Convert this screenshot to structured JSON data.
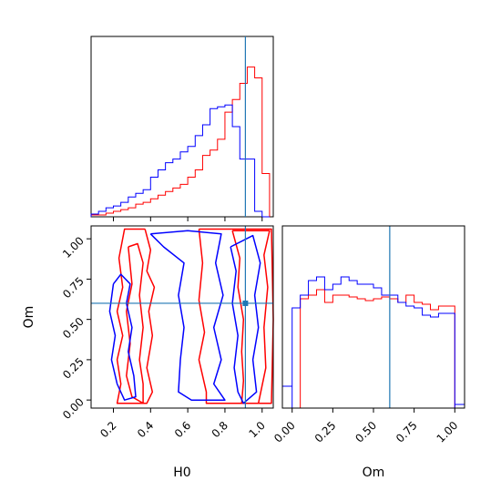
{
  "chart_data": {
    "type": "corner",
    "parameters": [
      "H0",
      "Om"
    ],
    "truth": {
      "H0": 0.91,
      "Om": 0.6
    },
    "truth_color": "#1f77b4",
    "series": [
      {
        "color": "#ff0000"
      },
      {
        "color": "#0000ff"
      }
    ],
    "panels": [
      {
        "id": "hist-H0",
        "type": "step-histogram",
        "xlim": [
          0.08,
          1.06
        ],
        "ylim": [
          0,
          1.0
        ],
        "xticks": [
          0.2,
          0.4,
          0.6,
          0.8,
          1.0
        ],
        "bins": [
          0.08,
          0.12,
          0.16,
          0.2,
          0.24,
          0.28,
          0.32,
          0.36,
          0.4,
          0.44,
          0.48,
          0.52,
          0.56,
          0.6,
          0.64,
          0.68,
          0.72,
          0.76,
          0.8,
          0.84,
          0.88,
          0.92,
          0.96,
          1.0,
          1.04
        ],
        "counts": [
          [
            0.01,
            0.01,
            0.02,
            0.03,
            0.04,
            0.05,
            0.07,
            0.08,
            0.1,
            0.12,
            0.14,
            0.16,
            0.18,
            0.22,
            0.26,
            0.34,
            0.37,
            0.43,
            0.58,
            0.65,
            0.74,
            0.83,
            0.77,
            0.24,
            0.0
          ],
          [
            0.015,
            0.03,
            0.05,
            0.06,
            0.08,
            0.11,
            0.13,
            0.15,
            0.22,
            0.26,
            0.3,
            0.32,
            0.36,
            0.39,
            0.45,
            0.51,
            0.6,
            0.61,
            0.62,
            0.5,
            0.32,
            0.32,
            0.03,
            0.0,
            0.0
          ]
        ]
      },
      {
        "id": "contour-H0-Om",
        "type": "contour",
        "xlabel": "H0",
        "ylabel": "Om",
        "xlim": [
          0.08,
          1.06
        ],
        "ylim": [
          -0.05,
          1.08
        ],
        "xticks": [
          0.2,
          0.4,
          0.6,
          0.8,
          1.0
        ],
        "yticks": [
          0.0,
          0.25,
          0.5,
          0.75,
          1.0
        ],
        "ytick_labels": [
          "0.00",
          "0.25",
          "0.50",
          "0.75",
          "1.00"
        ],
        "contours": [
          [
            [
              [
                0.28,
                0.95
              ],
              [
                0.3,
                0.72
              ],
              [
                0.27,
                0.55
              ],
              [
                0.29,
                0.35
              ],
              [
                0.27,
                0.15
              ],
              [
                0.3,
                0.02
              ],
              [
                0.36,
                -0.02
              ],
              [
                0.36,
                0.1
              ],
              [
                0.34,
                0.25
              ],
              [
                0.36,
                0.45
              ],
              [
                0.34,
                0.65
              ],
              [
                0.36,
                0.85
              ],
              [
                0.33,
                0.97
              ],
              [
                0.28,
                0.95
              ]
            ],
            [
              [
                0.84,
                1.05
              ],
              [
                0.88,
                0.88
              ],
              [
                0.87,
                0.7
              ],
              [
                0.9,
                0.5
              ],
              [
                0.89,
                0.3
              ],
              [
                0.9,
                0.12
              ],
              [
                0.89,
                -0.02
              ],
              [
                0.98,
                -0.02
              ],
              [
                1.02,
                0.2
              ],
              [
                1.01,
                0.45
              ],
              [
                1.03,
                0.7
              ],
              [
                1.01,
                0.9
              ],
              [
                1.04,
                1.05
              ],
              [
                0.84,
                1.05
              ]
            ],
            [
              [
                0.37,
                1.06
              ],
              [
                0.4,
                0.93
              ],
              [
                0.38,
                0.8
              ],
              [
                0.42,
                0.7
              ],
              [
                0.39,
                0.55
              ],
              [
                0.41,
                0.4
              ],
              [
                0.38,
                0.2
              ],
              [
                0.41,
                0.05
              ],
              [
                0.38,
                -0.02
              ],
              [
                0.22,
                -0.02
              ],
              [
                0.24,
                0.1
              ],
              [
                0.22,
                0.25
              ],
              [
                0.25,
                0.4
              ],
              [
                0.22,
                0.55
              ],
              [
                0.25,
                0.7
              ],
              [
                0.23,
                0.88
              ],
              [
                0.26,
                1.06
              ],
              [
                0.37,
                1.06
              ]
            ],
            [
              [
                0.66,
                1.06
              ],
              [
                0.68,
                0.85
              ],
              [
                0.66,
                0.62
              ],
              [
                0.69,
                0.42
              ],
              [
                0.66,
                0.25
              ],
              [
                0.7,
                0.05
              ],
              [
                0.7,
                -0.02
              ],
              [
                1.05,
                -0.02
              ],
              [
                1.06,
                0.5
              ],
              [
                1.05,
                1.06
              ],
              [
                0.66,
                1.06
              ]
            ]
          ],
          [
            [
              [
                0.2,
                0.72
              ],
              [
                0.18,
                0.55
              ],
              [
                0.21,
                0.4
              ],
              [
                0.19,
                0.25
              ],
              [
                0.22,
                0.1
              ],
              [
                0.26,
                0.0
              ],
              [
                0.32,
                0.02
              ],
              [
                0.31,
                0.15
              ],
              [
                0.28,
                0.3
              ],
              [
                0.3,
                0.45
              ],
              [
                0.27,
                0.6
              ],
              [
                0.29,
                0.72
              ],
              [
                0.24,
                0.78
              ],
              [
                0.2,
                0.72
              ]
            ],
            [
              [
                0.83,
                0.95
              ],
              [
                0.86,
                0.8
              ],
              [
                0.84,
                0.6
              ],
              [
                0.87,
                0.4
              ],
              [
                0.85,
                0.2
              ],
              [
                0.87,
                0.05
              ],
              [
                0.9,
                -0.02
              ],
              [
                0.97,
                0.05
              ],
              [
                0.95,
                0.25
              ],
              [
                0.98,
                0.45
              ],
              [
                0.96,
                0.65
              ],
              [
                0.99,
                0.85
              ],
              [
                0.95,
                1.02
              ],
              [
                0.83,
                0.95
              ]
            ],
            [
              [
                0.4,
                1.03
              ],
              [
                0.6,
                1.05
              ],
              [
                0.78,
                1.03
              ],
              [
                0.75,
                0.85
              ],
              [
                0.79,
                0.65
              ],
              [
                0.74,
                0.45
              ],
              [
                0.78,
                0.25
              ],
              [
                0.74,
                0.1
              ],
              [
                0.8,
                0.0
              ],
              [
                0.62,
                0.0
              ],
              [
                0.55,
                0.05
              ],
              [
                0.56,
                0.25
              ],
              [
                0.58,
                0.45
              ],
              [
                0.55,
                0.65
              ],
              [
                0.58,
                0.85
              ],
              [
                0.47,
                0.95
              ],
              [
                0.4,
                1.03
              ]
            ]
          ]
        ]
      },
      {
        "id": "hist-Om",
        "type": "step-histogram",
        "xlabel": "Om",
        "xlim": [
          -0.06,
          1.06
        ],
        "ylim": [
          0,
          1.0
        ],
        "xticks": [
          0.0,
          0.25,
          0.5,
          0.75,
          1.0
        ],
        "xtick_labels": [
          "0.00",
          "0.25",
          "0.50",
          "0.75",
          "1.00"
        ],
        "bins": [
          0.0,
          0.05,
          0.1,
          0.15,
          0.2,
          0.25,
          0.3,
          0.35,
          0.4,
          0.45,
          0.5,
          0.55,
          0.6,
          0.65,
          0.7,
          0.75,
          0.8,
          0.85,
          0.9,
          1.0
        ],
        "counts": [
          [
            0.0,
            0.6,
            0.62,
            0.65,
            0.58,
            0.62,
            0.62,
            0.61,
            0.6,
            0.59,
            0.6,
            0.61,
            0.6,
            0.58,
            0.62,
            0.58,
            0.57,
            0.54,
            0.56
          ],
          [
            0.55,
            0.62,
            0.7,
            0.72,
            0.65,
            0.68,
            0.72,
            0.7,
            0.68,
            0.68,
            0.66,
            0.62,
            0.62,
            0.58,
            0.56,
            0.55,
            0.51,
            0.5,
            0.52
          ]
        ]
      }
    ]
  }
}
